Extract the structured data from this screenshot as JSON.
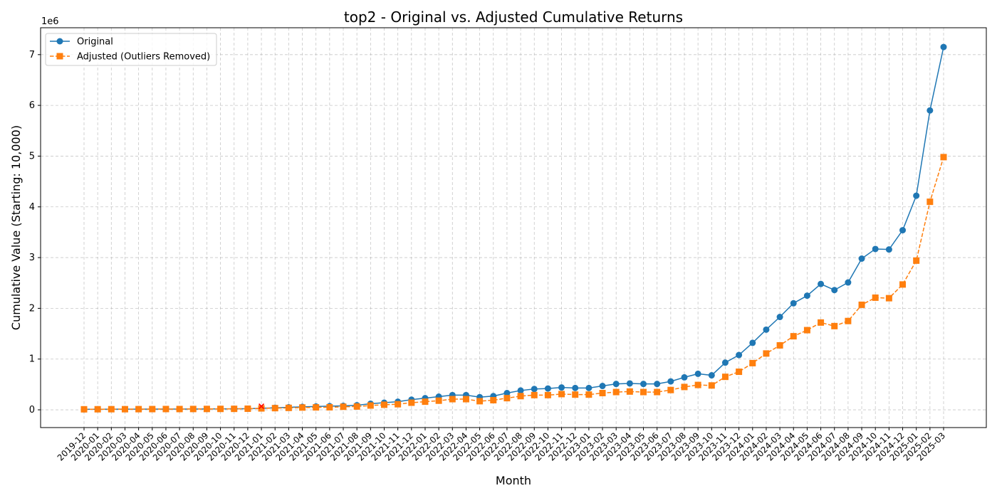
{
  "chart_data": {
    "type": "line",
    "title": "top2 - Original vs. Adjusted Cumulative Returns",
    "xlabel": "Month",
    "ylabel": "Cumulative Value (Starting: 10,000)",
    "y_offset_label": "1e6",
    "categories": [
      "2019-12",
      "2020-01",
      "2020-02",
      "2020-03",
      "2020-04",
      "2020-05",
      "2020-06",
      "2020-07",
      "2020-08",
      "2020-09",
      "2020-10",
      "2020-11",
      "2020-12",
      "2021-01",
      "2021-02",
      "2021-03",
      "2021-04",
      "2021-05",
      "2021-06",
      "2021-07",
      "2021-08",
      "2021-09",
      "2021-10",
      "2021-11",
      "2021-12",
      "2022-01",
      "2022-02",
      "2022-03",
      "2022-04",
      "2022-05",
      "2022-06",
      "2022-07",
      "2022-08",
      "2022-09",
      "2022-10",
      "2022-11",
      "2022-12",
      "2023-01",
      "2023-02",
      "2023-03",
      "2023-04",
      "2023-05",
      "2023-06",
      "2023-07",
      "2023-08",
      "2023-09",
      "2023-10",
      "2023-11",
      "2023-12",
      "2024-01",
      "2024-02",
      "2024-03",
      "2024-04",
      "2024-05",
      "2024-06",
      "2024-07",
      "2024-08",
      "2024-09",
      "2024-10",
      "2024-11",
      "2024-12",
      "2025-01",
      "2025-02",
      "2025-03"
    ],
    "series": [
      {
        "name": "Original",
        "color": "#1f77b4",
        "marker": "circle",
        "dash": "solid",
        "values": [
          10000,
          11000,
          12000,
          12000,
          13000,
          14000,
          15000,
          15000,
          16000,
          17000,
          18000,
          19000,
          22000,
          30000,
          40000,
          50000,
          58000,
          66000,
          72000,
          78000,
          90000,
          120000,
          140000,
          160000,
          200000,
          230000,
          260000,
          290000,
          290000,
          250000,
          270000,
          330000,
          380000,
          410000,
          420000,
          440000,
          430000,
          430000,
          470000,
          510000,
          520000,
          510000,
          510000,
          560000,
          640000,
          710000,
          680000,
          930000,
          1080000,
          1320000,
          1580000,
          1830000,
          2100000,
          2250000,
          2480000,
          2360000,
          2510000,
          2980000,
          3170000,
          3160000,
          3540000,
          4220000,
          5900000,
          7150000
        ]
      },
      {
        "name": "Adjusted (Outliers Removed)",
        "color": "#ff7f0e",
        "marker": "square",
        "dash": "dashed",
        "values": [
          10000,
          11000,
          12000,
          12000,
          13000,
          14000,
          15000,
          15000,
          16000,
          17000,
          18000,
          19000,
          22000,
          28000,
          33000,
          38000,
          45000,
          48000,
          50000,
          60000,
          65000,
          85000,
          100000,
          110000,
          140000,
          160000,
          180000,
          210000,
          210000,
          170000,
          190000,
          230000,
          270000,
          290000,
          290000,
          310000,
          300000,
          300000,
          330000,
          350000,
          360000,
          350000,
          350000,
          390000,
          450000,
          490000,
          480000,
          650000,
          750000,
          920000,
          1110000,
          1270000,
          1450000,
          1570000,
          1720000,
          1650000,
          1750000,
          2070000,
          2210000,
          2200000,
          2470000,
          2940000,
          4100000,
          4980000
        ]
      }
    ],
    "outliers": {
      "categories": [
        "2021-01"
      ],
      "values": [
        70000
      ],
      "color": "red"
    },
    "ylim": [
      -350000,
      7530000
    ],
    "yticks": [
      0,
      {
        "value": 1000000,
        "label": "1"
      },
      {
        "value": 2000000,
        "label": "2"
      },
      {
        "value": 3000000,
        "label": "3"
      },
      {
        "value": 4000000,
        "label": "4"
      },
      {
        "value": 5000000,
        "label": "5"
      },
      {
        "value": 6000000,
        "label": "6"
      },
      {
        "value": 7000000,
        "label": "7"
      }
    ],
    "grid": true,
    "legend": "upper left"
  }
}
